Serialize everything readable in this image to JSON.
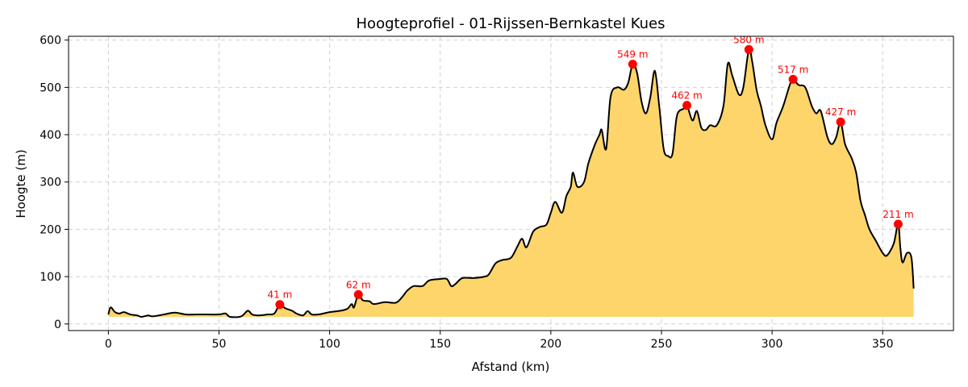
{
  "chart_data": {
    "type": "area",
    "title": "Hoogteprofiel - 01-Rijssen-Bernkastel Kues",
    "xlabel": "Afstand (km)",
    "ylabel": "Hoogte (m)",
    "xlim": [
      -18,
      382
    ],
    "ylim": [
      -14,
      608
    ],
    "xticks": [
      0,
      50,
      100,
      150,
      200,
      250,
      300,
      350
    ],
    "yticks": [
      0,
      100,
      200,
      300,
      400,
      500,
      600
    ],
    "grid": true,
    "fill_baseline": 15,
    "colors": {
      "fill": "#fdd56a",
      "line": "#000000",
      "marker": "#ff0000",
      "annotation": "#ff0000",
      "grid": "#d0d0d0"
    },
    "x": [
      0,
      1,
      3,
      5,
      7,
      10,
      13,
      15,
      18,
      20,
      25,
      30,
      35,
      40,
      45,
      50,
      53,
      55,
      60,
      63,
      65,
      68,
      72,
      75,
      77.5,
      80,
      83,
      85,
      88,
      90,
      92,
      95,
      100,
      105,
      108,
      110,
      111,
      113,
      115,
      118,
      120,
      125,
      130,
      133,
      135,
      138,
      142,
      145,
      150,
      153,
      155,
      157,
      160,
      165,
      170,
      172,
      175,
      178,
      182,
      185,
      187,
      189,
      192,
      195,
      198,
      200,
      202,
      205,
      207,
      209,
      210,
      212,
      215,
      217,
      220,
      222,
      223,
      225,
      227,
      230,
      233,
      235,
      237,
      239,
      241,
      243,
      245,
      247,
      249,
      251,
      253,
      255,
      257,
      260,
      261.5,
      264,
      266,
      268,
      270,
      272,
      275,
      278,
      280,
      282,
      285,
      287,
      289.5,
      291,
      293,
      295,
      297,
      300,
      302,
      305,
      308,
      309.5,
      312,
      315,
      318,
      320,
      322,
      325,
      327,
      329,
      331,
      333,
      336,
      338,
      340,
      342,
      344,
      347,
      350,
      352,
      355,
      357,
      358,
      359,
      361,
      363,
      364
    ],
    "y": [
      20,
      35,
      25,
      22,
      25,
      20,
      18,
      15,
      18,
      16,
      20,
      24,
      20,
      20,
      20,
      20,
      22,
      15,
      16,
      28,
      20,
      18,
      20,
      22,
      41,
      33,
      28,
      22,
      18,
      27,
      20,
      20,
      25,
      28,
      32,
      42,
      35,
      62,
      50,
      48,
      42,
      46,
      45,
      58,
      70,
      80,
      80,
      92,
      95,
      95,
      80,
      85,
      97,
      97,
      100,
      105,
      128,
      135,
      140,
      165,
      180,
      162,
      195,
      205,
      210,
      235,
      258,
      235,
      270,
      290,
      320,
      290,
      300,
      340,
      380,
      400,
      410,
      370,
      480,
      500,
      495,
      510,
      549,
      530,
      470,
      445,
      480,
      535,
      460,
      370,
      355,
      360,
      440,
      455,
      462,
      430,
      450,
      415,
      410,
      420,
      420,
      460,
      550,
      525,
      485,
      500,
      580,
      555,
      495,
      460,
      420,
      390,
      425,
      460,
      505,
      517,
      505,
      500,
      460,
      445,
      450,
      395,
      380,
      395,
      427,
      380,
      350,
      320,
      260,
      230,
      200,
      175,
      150,
      145,
      170,
      211,
      160,
      130,
      150,
      140,
      75
    ],
    "annotations": [
      {
        "x": 77.5,
        "y": 41,
        "label": "41 m"
      },
      {
        "x": 113,
        "y": 62,
        "label": "62 m"
      },
      {
        "x": 237,
        "y": 549,
        "label": "549 m"
      },
      {
        "x": 261.5,
        "y": 462,
        "label": "462 m"
      },
      {
        "x": 289.5,
        "y": 580,
        "label": "580 m"
      },
      {
        "x": 309.5,
        "y": 517,
        "label": "517 m"
      },
      {
        "x": 331,
        "y": 427,
        "label": "427 m"
      },
      {
        "x": 357,
        "y": 211,
        "label": "211 m"
      }
    ]
  }
}
